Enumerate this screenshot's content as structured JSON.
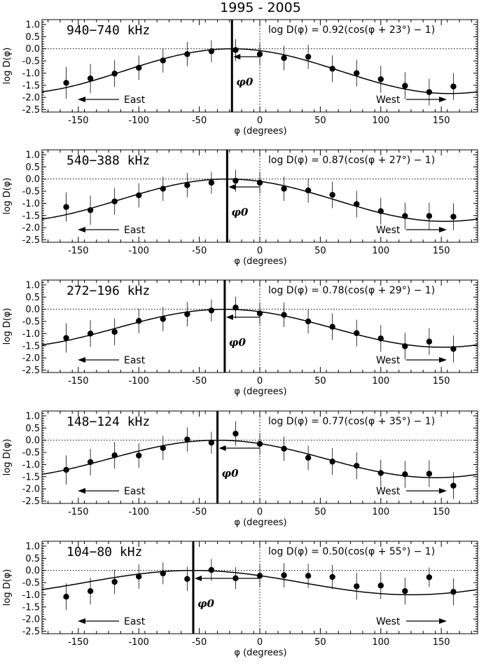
{
  "figure": {
    "title": "1995 - 2005",
    "xlabel": "φ (degrees)",
    "ylabel": "log D(φ)",
    "xlim": [
      -180,
      180
    ],
    "ylim": [
      -2.6,
      1.2
    ],
    "xticks": [
      -150,
      -100,
      -50,
      0,
      50,
      100,
      150
    ],
    "yticks": [
      1.0,
      0.5,
      0.0,
      -0.5,
      -1.0,
      -1.5,
      -2.0,
      -2.5
    ],
    "east_label": "East",
    "west_label": "West",
    "phi0_label": "φ0"
  },
  "chart_data": [
    {
      "type": "scatter",
      "band_label": "940−740 kHz",
      "formula": "log D(φ)   = 0.92(cos(φ + 23°) − 1)",
      "fit": {
        "amplitude": 0.92,
        "phi0": -23
      },
      "points": {
        "x": [
          -160,
          -140,
          -120,
          -100,
          -80,
          -60,
          -40,
          -20,
          0,
          20,
          40,
          60,
          80,
          100,
          120,
          140,
          160
        ],
        "y": [
          -1.4,
          -1.22,
          -1.02,
          -0.78,
          -0.48,
          -0.22,
          -0.1,
          -0.05,
          -0.22,
          -0.38,
          -0.33,
          -0.82,
          -1.0,
          -1.25,
          -1.52,
          -1.78,
          -1.55
        ],
        "err": [
          0.65,
          0.6,
          0.55,
          0.5,
          0.5,
          0.5,
          0.45,
          0.45,
          0.45,
          0.5,
          0.5,
          0.55,
          0.55,
          0.55,
          0.55,
          0.55,
          0.55
        ]
      }
    },
    {
      "type": "scatter",
      "band_label": "540−388 kHz",
      "formula": "log D(φ)   = 0.87(cos(φ + 27°) − 1)",
      "fit": {
        "amplitude": 0.87,
        "phi0": -27
      },
      "points": {
        "x": [
          -160,
          -140,
          -120,
          -100,
          -80,
          -60,
          -40,
          -20,
          0,
          20,
          40,
          60,
          80,
          100,
          120,
          140,
          160
        ],
        "y": [
          -1.15,
          -1.28,
          -0.92,
          -0.67,
          -0.4,
          -0.25,
          -0.15,
          -0.07,
          -0.15,
          -0.4,
          -0.47,
          -0.65,
          -1.03,
          -1.32,
          -1.52,
          -1.52,
          -1.55
        ],
        "err": [
          0.6,
          0.6,
          0.55,
          0.5,
          0.5,
          0.5,
          0.45,
          0.45,
          0.45,
          0.5,
          0.5,
          0.55,
          0.55,
          0.55,
          0.55,
          0.55,
          0.55
        ]
      }
    },
    {
      "type": "scatter",
      "band_label": "272−196 kHz",
      "formula": "log D(φ)   = 0.78(cos(φ + 29°) − 1)",
      "fit": {
        "amplitude": 0.78,
        "phi0": -29
      },
      "points": {
        "x": [
          -160,
          -140,
          -120,
          -100,
          -80,
          -60,
          -40,
          -20,
          0,
          20,
          40,
          60,
          80,
          100,
          120,
          140,
          160
        ],
        "y": [
          -1.18,
          -1.0,
          -0.93,
          -0.48,
          -0.4,
          -0.2,
          -0.05,
          0.07,
          -0.17,
          -0.23,
          -0.5,
          -0.72,
          -0.98,
          -1.2,
          -1.52,
          -1.33,
          -1.63
        ],
        "err": [
          0.6,
          0.55,
          0.55,
          0.5,
          0.5,
          0.5,
          0.45,
          0.45,
          0.45,
          0.5,
          0.5,
          0.55,
          0.55,
          0.55,
          0.55,
          0.55,
          0.55
        ]
      }
    },
    {
      "type": "scatter",
      "band_label": "148−124 kHz",
      "formula": "log D(φ)   = 0.77(cos(φ + 35°) − 1)",
      "fit": {
        "amplitude": 0.77,
        "phi0": -35
      },
      "points": {
        "x": [
          -160,
          -140,
          -120,
          -100,
          -80,
          -60,
          -40,
          -20,
          0,
          20,
          40,
          60,
          80,
          100,
          120,
          140,
          160
        ],
        "y": [
          -1.22,
          -0.9,
          -0.62,
          -0.63,
          -0.32,
          0.03,
          -0.1,
          0.27,
          -0.15,
          -0.35,
          -0.72,
          -0.88,
          -1.05,
          -1.35,
          -1.4,
          -1.38,
          -1.87
        ],
        "err": [
          0.6,
          0.55,
          0.55,
          0.5,
          0.5,
          0.5,
          0.45,
          0.5,
          0.45,
          0.5,
          0.5,
          0.55,
          0.55,
          0.55,
          0.55,
          0.55,
          0.55
        ]
      }
    },
    {
      "type": "scatter",
      "band_label": "104−80 kHz",
      "formula": "log D(φ)   = 0.50(cos(φ + 55°) − 1)",
      "fit": {
        "amplitude": 0.5,
        "phi0": -55
      },
      "points": {
        "x": [
          -160,
          -140,
          -120,
          -100,
          -80,
          -60,
          -40,
          -20,
          0,
          20,
          40,
          60,
          80,
          100,
          120,
          140,
          160
        ],
        "y": [
          -1.08,
          -0.85,
          -0.47,
          -0.25,
          -0.12,
          -0.35,
          0.02,
          -0.32,
          -0.22,
          -0.2,
          -0.22,
          -0.27,
          -0.65,
          -0.62,
          -0.85,
          -0.28,
          -0.88
        ],
        "err": [
          0.55,
          0.55,
          0.5,
          0.5,
          0.45,
          0.5,
          0.45,
          0.45,
          0.45,
          0.5,
          0.5,
          0.5,
          0.55,
          0.55,
          0.55,
          0.4,
          0.55
        ]
      }
    }
  ]
}
